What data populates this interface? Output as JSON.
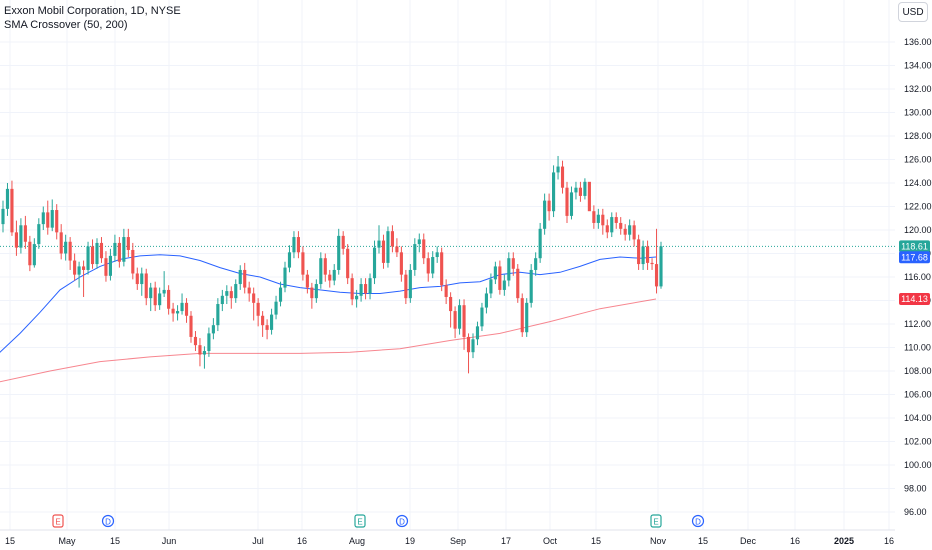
{
  "header": {
    "title": "Exxon Mobil Corporation, 1D, NYSE",
    "indicator": "SMA Crossover (50, 200)",
    "currency": "USD"
  },
  "colors": {
    "up": "#26a69a",
    "down": "#ef5350",
    "sma50": "#2962ff",
    "sma200": "#f23645",
    "earnings": "#ef5350",
    "earnings_alt": "#26a69a",
    "dividend": "#2962ff",
    "grid": "#f0f3fa"
  },
  "chart_data": {
    "type": "candlestick",
    "symbol": "XOM",
    "ylim": [
      95,
      138
    ],
    "y_ticks": [
      96,
      98,
      100,
      102,
      104,
      106,
      108,
      110,
      112,
      114,
      116,
      118,
      120,
      122,
      124,
      126,
      128,
      130,
      132,
      134,
      136
    ],
    "x_labels": [
      "15",
      "May",
      "15",
      "Jun",
      "Jul",
      "16",
      "Aug",
      "19",
      "Sep",
      "17",
      "Oct",
      "15",
      "Nov",
      "15",
      "Dec",
      "16",
      "2025",
      "16"
    ],
    "price_labels": [
      {
        "text": "118.61",
        "value": 118.61,
        "color": "#26a69a"
      },
      {
        "text": "117.68",
        "value": 117.68,
        "color": "#2962ff"
      },
      {
        "text": "114.13",
        "value": 114.13,
        "color": "#f23645"
      }
    ],
    "event_markers": [
      {
        "label": "E",
        "kind": "earnings",
        "x": 58
      },
      {
        "label": "D",
        "kind": "dividend",
        "x": 108
      },
      {
        "label": "E",
        "kind": "earnings",
        "x": 360
      },
      {
        "label": "D",
        "kind": "dividend",
        "x": 402
      },
      {
        "label": "E",
        "kind": "earnings",
        "x": 656
      },
      {
        "label": "D",
        "kind": "dividend",
        "x": 698
      }
    ],
    "candles": [
      [
        120.5,
        121.8,
        122.5,
        119.8
      ],
      [
        121.8,
        123.5,
        124,
        121.2
      ],
      [
        123.5,
        119.8,
        124.2,
        119.5
      ],
      [
        119.8,
        118.5,
        120.8,
        117.8
      ],
      [
        118.5,
        120.4,
        121,
        118
      ],
      [
        120.4,
        119,
        121.2,
        118.4
      ],
      [
        119,
        117,
        119.5,
        116.5
      ],
      [
        117,
        118.8,
        119.3,
        116.8
      ],
      [
        118.8,
        120.5,
        121,
        118.4
      ],
      [
        120.5,
        121.5,
        122,
        120
      ],
      [
        121.5,
        120.2,
        122.5,
        119.6
      ],
      [
        120.2,
        121.7,
        122.6,
        119.9
      ],
      [
        121.7,
        119.8,
        122.2,
        119.2
      ],
      [
        119.8,
        118,
        120.5,
        117.5
      ],
      [
        118,
        119,
        119.6,
        117.4
      ],
      [
        119,
        117.4,
        119.4,
        116.6
      ],
      [
        117.4,
        116.2,
        118,
        115.7
      ],
      [
        116.2,
        116.9,
        117.3,
        115.1
      ],
      [
        116.9,
        116.6,
        117.4,
        114.3
      ],
      [
        116.6,
        118.6,
        119,
        116.2
      ],
      [
        118.6,
        117.1,
        119.2,
        116.7
      ],
      [
        117.1,
        118.9,
        119.3,
        116.7
      ],
      [
        118.9,
        117.6,
        119.4,
        117.2
      ],
      [
        117.6,
        116.1,
        118.2,
        115.6
      ],
      [
        116.1,
        117.8,
        118.4,
        115.7
      ],
      [
        117.8,
        118.9,
        119.6,
        117.3
      ],
      [
        118.9,
        117.3,
        119.4,
        116.8
      ],
      [
        117.3,
        119.4,
        120.1,
        116.9
      ],
      [
        119.4,
        118.3,
        120.1,
        117.7
      ],
      [
        118.3,
        116.3,
        118.9,
        115.8
      ],
      [
        116.3,
        115.4,
        116.8,
        114.9
      ],
      [
        115.4,
        116.3,
        116.8,
        114.4
      ],
      [
        116.3,
        114.2,
        116.7,
        113.6
      ],
      [
        114.2,
        115.1,
        115.5,
        113.1
      ],
      [
        115.1,
        113.6,
        115.6,
        113.1
      ],
      [
        113.6,
        114.6,
        115.1,
        113.2
      ],
      [
        114.6,
        114.9,
        116.5,
        114.3
      ],
      [
        114.9,
        113.3,
        115.3,
        112.8
      ],
      [
        113.3,
        112.9,
        113.8,
        112.2
      ],
      [
        112.9,
        113.1,
        113.6,
        112.3
      ],
      [
        113.1,
        113.8,
        114.6,
        112.8
      ],
      [
        113.8,
        112.7,
        114.2,
        112.1
      ],
      [
        112.7,
        110.9,
        113.1,
        110.4
      ],
      [
        110.9,
        110.2,
        111.4,
        109.7
      ],
      [
        110.2,
        109.4,
        110.8,
        108.4
      ],
      [
        109.4,
        109.7,
        110.1,
        108.2
      ],
      [
        109.7,
        111.2,
        111.7,
        109.2
      ],
      [
        111.2,
        111.9,
        112.5,
        110.7
      ],
      [
        111.9,
        113.7,
        114.2,
        111.4
      ],
      [
        113.7,
        114.4,
        114.9,
        113.1
      ],
      [
        114.4,
        114.8,
        115.3,
        113.7
      ],
      [
        114.8,
        114.2,
        115.2,
        113.3
      ],
      [
        114.2,
        115.4,
        115.8,
        113.8
      ],
      [
        115.4,
        116.6,
        117,
        114.9
      ],
      [
        116.6,
        115.1,
        117.2,
        114.6
      ],
      [
        115.1,
        114.6,
        115.6,
        113.9
      ],
      [
        114.6,
        113.8,
        115.1,
        112.3
      ],
      [
        113.8,
        112.7,
        114.2,
        111.8
      ],
      [
        112.7,
        111.9,
        113.1,
        110.9
      ],
      [
        111.9,
        111.5,
        112.4,
        110.7
      ],
      [
        111.5,
        112.8,
        113.3,
        111.1
      ],
      [
        112.8,
        113.9,
        114.4,
        112.4
      ],
      [
        113.9,
        115.1,
        115.6,
        113.5
      ],
      [
        115.1,
        116.8,
        117.3,
        114.7
      ],
      [
        116.8,
        118.1,
        118.7,
        116.4
      ],
      [
        118.1,
        119.4,
        119.9,
        117.6
      ],
      [
        119.4,
        118.1,
        119.9,
        117.6
      ],
      [
        118.1,
        116.2,
        118.6,
        115.7
      ],
      [
        116.2,
        115.1,
        116.6,
        114.6
      ],
      [
        115.1,
        114.2,
        115.5,
        113.3
      ],
      [
        114.2,
        115.4,
        115.8,
        113.8
      ],
      [
        115.4,
        117.6,
        118.1,
        115
      ],
      [
        117.6,
        116.2,
        118,
        115.6
      ],
      [
        116.2,
        115.7,
        116.6,
        115.1
      ],
      [
        115.7,
        116.6,
        117.1,
        115.3
      ],
      [
        116.6,
        119.5,
        120.1,
        116.2
      ],
      [
        119.5,
        118.4,
        119.9,
        117.9
      ],
      [
        118.4,
        115.9,
        118.8,
        115.4
      ],
      [
        115.9,
        114.1,
        116.3,
        113.6
      ],
      [
        114.1,
        114.4,
        114.9,
        113.4
      ],
      [
        114.4,
        115.4,
        115.9,
        113.9
      ],
      [
        115.4,
        114.6,
        115.9,
        114.1
      ],
      [
        114.6,
        115.9,
        116.3,
        114.1
      ],
      [
        115.9,
        118.5,
        119.1,
        115.4
      ],
      [
        118.5,
        119.1,
        120.4,
        118
      ],
      [
        119.1,
        117.2,
        119.6,
        116.7
      ],
      [
        117.2,
        119.9,
        120.3,
        116.8
      ],
      [
        119.9,
        118.6,
        120.4,
        118.1
      ],
      [
        118.6,
        118.1,
        119.3,
        117.7
      ],
      [
        118.1,
        116.2,
        118.6,
        115.6
      ],
      [
        116.2,
        114.2,
        116.6,
        113.7
      ],
      [
        114.2,
        116.6,
        117.1,
        113.8
      ],
      [
        116.6,
        118.8,
        119.3,
        116.1
      ],
      [
        118.8,
        119.2,
        119.7,
        118.1
      ],
      [
        119.2,
        117.6,
        119.7,
        117.1
      ],
      [
        117.6,
        116.3,
        118.1,
        115.6
      ],
      [
        116.3,
        117.7,
        118.2,
        115.9
      ],
      [
        117.7,
        118.1,
        118.6,
        117.2
      ],
      [
        118.1,
        115.3,
        118.5,
        114.8
      ],
      [
        115.3,
        114.3,
        115.8,
        113.7
      ],
      [
        114.3,
        113.1,
        114.7,
        111.7
      ],
      [
        113.1,
        111.6,
        113.5,
        110.8
      ],
      [
        111.6,
        113.6,
        114.1,
        111.1
      ],
      [
        113.6,
        110.9,
        114.1,
        109.8
      ],
      [
        110.9,
        109.6,
        111.2,
        107.8
      ],
      [
        109.6,
        110.7,
        111.2,
        109.1
      ],
      [
        110.7,
        111.8,
        112.2,
        110.2
      ],
      [
        111.8,
        113.4,
        113.8,
        111.4
      ],
      [
        113.4,
        114.6,
        115.1,
        112.9
      ],
      [
        114.6,
        115.8,
        116.3,
        114.2
      ],
      [
        115.8,
        116.9,
        117.3,
        115.4
      ],
      [
        116.9,
        114.9,
        117.4,
        114.5
      ],
      [
        114.9,
        115.7,
        116.2,
        114.4
      ],
      [
        115.7,
        117.6,
        118.1,
        115.2
      ],
      [
        117.6,
        116.7,
        118.1,
        116.1
      ],
      [
        116.7,
        114.2,
        117.1,
        113.8
      ],
      [
        114.2,
        111.3,
        114.6,
        110.9
      ],
      [
        111.3,
        113.8,
        114.2,
        110.9
      ],
      [
        113.8,
        116.6,
        117.1,
        113.4
      ],
      [
        116.6,
        117.6,
        118.1,
        116.1
      ],
      [
        117.6,
        120.1,
        120.6,
        117.2
      ],
      [
        120.1,
        122.5,
        123.1,
        119.6
      ],
      [
        122.5,
        121.6,
        123.1,
        120.8
      ],
      [
        121.6,
        124.9,
        125.5,
        121.1
      ],
      [
        124.9,
        125.4,
        126.3,
        124.3
      ],
      [
        125.4,
        123.6,
        125.9,
        123.1
      ],
      [
        123.6,
        121.2,
        124.1,
        120.6
      ],
      [
        121.2,
        123.2,
        123.7,
        120.9
      ],
      [
        123.2,
        123.6,
        124.1,
        122.6
      ],
      [
        123.6,
        122.9,
        124.1,
        122.4
      ],
      [
        122.9,
        124.1,
        124.4,
        122.6
      ],
      [
        124.1,
        121.6,
        121.6,
        121.6
      ],
      [
        121.6,
        120.6,
        122.1,
        120.1
      ],
      [
        120.6,
        121.3,
        121.8,
        120.1
      ],
      [
        121.3,
        120.4,
        121.8,
        119.6
      ],
      [
        120.4,
        119.8,
        120.9,
        119.3
      ],
      [
        119.8,
        121.1,
        121.5,
        119.4
      ],
      [
        121.1,
        120.6,
        121.5,
        120.1
      ],
      [
        120.6,
        120.1,
        121.1,
        119.6
      ],
      [
        120.1,
        119.6,
        120.5,
        119.1
      ],
      [
        119.6,
        120.4,
        120.9,
        119.1
      ],
      [
        120.4,
        119.2,
        120.8,
        118.6
      ],
      [
        119.2,
        117.1,
        119.6,
        116.6
      ],
      [
        117.1,
        118.6,
        119.1,
        116.6
      ],
      [
        118.6,
        117.2,
        119.1,
        116.6
      ],
      [
        117.2,
        117.1,
        117.6,
        116.6
      ],
      [
        117.1,
        115.2,
        120.1,
        114.6
      ],
      [
        115.2,
        118.61,
        119,
        115
      ]
    ],
    "sma50": [
      [
        -5,
        109.2
      ],
      [
        20,
        111.2
      ],
      [
        40,
        113.0
      ],
      [
        60,
        114.9
      ],
      [
        80,
        116.0
      ],
      [
        100,
        116.9
      ],
      [
        120,
        117.5
      ],
      [
        140,
        117.8
      ],
      [
        160,
        117.9
      ],
      [
        180,
        117.8
      ],
      [
        200,
        117.4
      ],
      [
        220,
        116.8
      ],
      [
        240,
        116.3
      ],
      [
        260,
        116.0
      ],
      [
        280,
        115.4
      ],
      [
        300,
        115.1
      ],
      [
        320,
        114.9
      ],
      [
        340,
        114.7
      ],
      [
        360,
        114.6
      ],
      [
        380,
        114.6
      ],
      [
        400,
        114.8
      ],
      [
        420,
        115.1
      ],
      [
        440,
        115.2
      ],
      [
        460,
        115.5
      ],
      [
        480,
        115.6
      ],
      [
        500,
        116.2
      ],
      [
        520,
        116.4
      ],
      [
        540,
        116.2
      ],
      [
        560,
        116.4
      ],
      [
        580,
        116.9
      ],
      [
        600,
        117.5
      ],
      [
        620,
        117.7
      ],
      [
        640,
        117.6
      ],
      [
        656,
        117.7
      ]
    ],
    "sma200": [
      [
        -5,
        107.0
      ],
      [
        50,
        108.0
      ],
      [
        100,
        108.8
      ],
      [
        150,
        109.2
      ],
      [
        200,
        109.5
      ],
      [
        250,
        109.5
      ],
      [
        300,
        109.5
      ],
      [
        350,
        109.6
      ],
      [
        400,
        109.9
      ],
      [
        450,
        110.6
      ],
      [
        500,
        111.2
      ],
      [
        550,
        112.2
      ],
      [
        600,
        113.3
      ],
      [
        656,
        114.13
      ]
    ]
  }
}
